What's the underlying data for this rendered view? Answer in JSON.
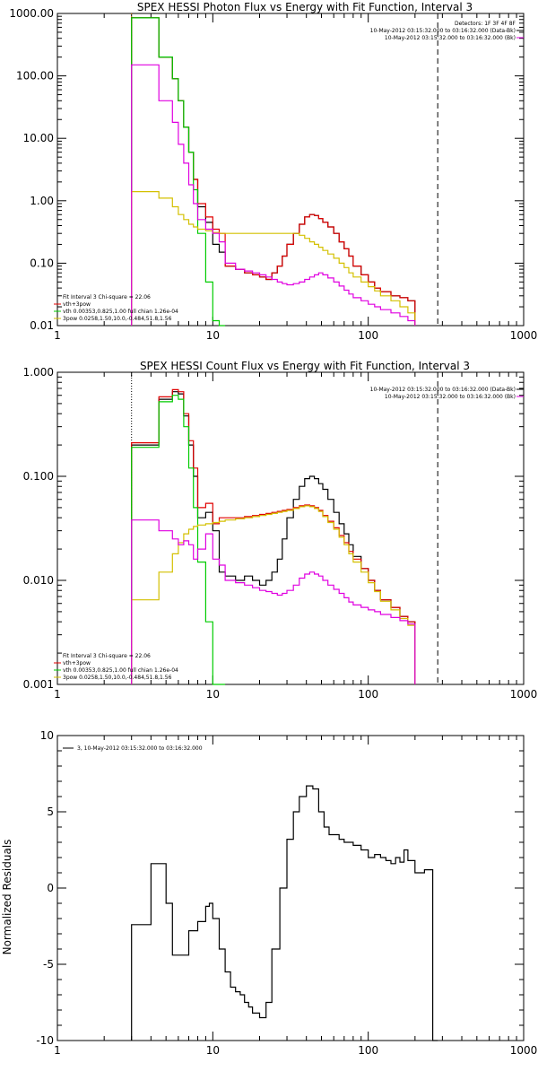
{
  "chart_data": [
    {
      "type": "line",
      "title": "SPEX HESSI Photon Flux vs Energy with Fit Function, Interval 3",
      "xlabel": "",
      "ylabel": "",
      "xscale": "log",
      "yscale": "log",
      "xlim": [
        1,
        1000
      ],
      "ylim": [
        0.01,
        1000
      ],
      "xticks": [
        1,
        10,
        100,
        1000
      ],
      "xtick_labels": [
        "1",
        "10",
        "100",
        "1000"
      ],
      "yticks": [
        0.01,
        0.1,
        1,
        10,
        100,
        1000
      ],
      "ytick_labels": [
        "0.01",
        "0.10",
        "1.00",
        "10.00",
        "100.00",
        "1000.00"
      ],
      "legend_top": [
        "Detectors: 1F 3F 4F 8F",
        "10-May-2012 03:15:32.000 to 03:16:32.000 (Data-Bk)",
        "10-May-2012 03:15:32.000 to 03:16:32.000 (Bk)"
      ],
      "legend_bottom": [
        "Fit Interval 3   Chi-square = 22.06",
        "vth+3pow",
        "vth 0.00353,0.825,1.00  full chian 1.26e-04",
        "3pow 0.0258,1.50,10.0,-0.484,51.8,1.56"
      ],
      "edges": [
        3,
        3.5,
        4,
        4.5,
        5,
        5.5,
        6,
        6.5,
        7,
        7.5,
        8,
        9,
        10,
        11,
        12,
        14,
        16,
        18,
        20,
        22,
        24,
        26,
        28,
        30,
        33,
        36,
        39,
        42,
        45,
        48,
        51,
        55,
        60,
        65,
        70,
        75,
        80,
        90,
        100,
        110,
        120,
        140,
        160,
        180,
        200,
        230,
        260,
        290
      ],
      "series": [
        {
          "name": "Data-Bk",
          "color": "#000000",
          "values": [
            850,
            850,
            850,
            200,
            200,
            90,
            40,
            15,
            6,
            2.2,
            0.8,
            0.45,
            0.2,
            0.15,
            0.09,
            0.08,
            0.07,
            0.065,
            0.06,
            0.055,
            0.07,
            0.09,
            0.13,
            0.2,
            0.3,
            0.42,
            0.55,
            0.6,
            0.58,
            0.52,
            0.45,
            0.38,
            0.3,
            0.22,
            0.17,
            0.13,
            0.09,
            0.065,
            0.05,
            0.04,
            0.035,
            0.03,
            0.028,
            0.025
          ]
        },
        {
          "name": "vth+3pow",
          "color": "#e00000",
          "values": [
            850,
            850,
            850,
            200,
            200,
            90,
            40,
            15,
            6,
            2.2,
            0.9,
            0.55,
            0.35,
            0.3,
            0.09,
            0.08,
            0.07,
            0.065,
            0.06,
            0.055,
            0.07,
            0.09,
            0.13,
            0.2,
            0.3,
            0.42,
            0.55,
            0.6,
            0.58,
            0.52,
            0.45,
            0.38,
            0.3,
            0.22,
            0.17,
            0.13,
            0.09,
            0.065,
            0.05,
            0.04,
            0.035,
            0.03,
            0.028,
            0.025
          ]
        },
        {
          "name": "vth",
          "color": "#00cc00",
          "values": [
            850,
            850,
            850,
            200,
            200,
            90,
            40,
            15,
            6,
            1.5,
            0.3,
            0.05,
            0.012,
            0.002
          ]
        },
        {
          "name": "3pow",
          "color": "#d4c000",
          "values": [
            1.4,
            1.4,
            1.4,
            1.1,
            1.1,
            0.8,
            0.6,
            0.5,
            0.42,
            0.38,
            0.35,
            0.33,
            0.31,
            0.3,
            0.3,
            0.3,
            0.3,
            0.3,
            0.3,
            0.3,
            0.3,
            0.3,
            0.3,
            0.3,
            0.3,
            0.28,
            0.25,
            0.22,
            0.2,
            0.18,
            0.16,
            0.14,
            0.12,
            0.1,
            0.085,
            0.07,
            0.06,
            0.05,
            0.042,
            0.036,
            0.03,
            0.025,
            0.02,
            0.016
          ]
        },
        {
          "name": "Bk",
          "color": "#e000e0",
          "values": [
            150,
            150,
            150,
            40,
            40,
            18,
            8,
            4,
            1.8,
            0.9,
            0.5,
            0.35,
            0.3,
            0.22,
            0.1,
            0.08,
            0.075,
            0.07,
            0.065,
            0.06,
            0.055,
            0.05,
            0.047,
            0.045,
            0.047,
            0.05,
            0.055,
            0.06,
            0.065,
            0.07,
            0.065,
            0.058,
            0.05,
            0.043,
            0.037,
            0.032,
            0.028,
            0.025,
            0.022,
            0.02,
            0.018,
            0.016,
            0.014,
            0.012
          ]
        }
      ],
      "markers": [
        {
          "x": 3,
          "style": "dotted",
          "color": "#e08000"
        },
        {
          "x": 280,
          "style": "dashed",
          "color": "#000000"
        }
      ]
    },
    {
      "type": "line",
      "title": "SPEX HESSI Count Flux vs Energy with Fit Function, Interval 3",
      "xlabel": "",
      "ylabel": "",
      "xscale": "log",
      "yscale": "log",
      "xlim": [
        1,
        1000
      ],
      "ylim": [
        0.001,
        1
      ],
      "xticks": [
        1,
        10,
        100,
        1000
      ],
      "xtick_labels": [
        "1",
        "10",
        "100",
        "1000"
      ],
      "yticks": [
        0.001,
        0.01,
        0.1,
        1
      ],
      "ytick_labels": [
        "0.001",
        "0.010",
        "0.100",
        "1.000"
      ],
      "legend_top": [
        "10-May-2012 03:15:32.000 to 03:16:32.000 (Data-Bk)",
        "10-May-2012 03:15:32.000 to 03:16:32.000 (Bk)"
      ],
      "legend_bottom": [
        "Fit Interval 3   Chi-square = 22.06",
        "vth+3pow",
        "vth 0.00353,0.825,1.00  full chian 1.26e-04",
        "3pow 0.0258,1.50,10.0,-0.484,51.8,1.56"
      ],
      "edges": [
        3,
        3.5,
        4,
        4.5,
        5,
        5.5,
        6,
        6.5,
        7,
        7.5,
        8,
        9,
        10,
        11,
        12,
        14,
        16,
        18,
        20,
        22,
        24,
        26,
        28,
        30,
        33,
        36,
        39,
        42,
        45,
        48,
        51,
        55,
        60,
        65,
        70,
        75,
        80,
        90,
        100,
        110,
        120,
        140,
        160,
        180,
        200,
        230,
        260,
        290
      ],
      "series": [
        {
          "name": "Data-Bk",
          "color": "#000000",
          "values": [
            0.2,
            0.2,
            0.2,
            0.55,
            0.55,
            0.65,
            0.62,
            0.38,
            0.2,
            0.1,
            0.04,
            0.045,
            0.03,
            0.012,
            0.011,
            0.01,
            0.011,
            0.01,
            0.009,
            0.01,
            0.012,
            0.016,
            0.025,
            0.04,
            0.06,
            0.08,
            0.095,
            0.1,
            0.095,
            0.085,
            0.075,
            0.06,
            0.045,
            0.035,
            0.028,
            0.022,
            0.017,
            0.013,
            0.01,
            0.008,
            0.0065,
            0.0055,
            0.0045,
            0.004
          ]
        },
        {
          "name": "vth+3pow",
          "color": "#e00000",
          "values": [
            0.21,
            0.21,
            0.21,
            0.58,
            0.58,
            0.68,
            0.65,
            0.4,
            0.22,
            0.12,
            0.05,
            0.055,
            0.035,
            0.04,
            0.04,
            0.04,
            0.041,
            0.042,
            0.043,
            0.044,
            0.045,
            0.046,
            0.047,
            0.048,
            0.05,
            0.052,
            0.053,
            0.052,
            0.05,
            0.047,
            0.042,
            0.037,
            0.032,
            0.027,
            0.023,
            0.019,
            0.016,
            0.013,
            0.01,
            0.008,
            0.0065,
            0.0055,
            0.0045,
            0.004
          ]
        },
        {
          "name": "vth",
          "color": "#00cc00",
          "values": [
            0.19,
            0.19,
            0.19,
            0.52,
            0.52,
            0.6,
            0.55,
            0.3,
            0.12,
            0.05,
            0.015,
            0.004,
            0.001,
            0.0004
          ]
        },
        {
          "name": "3pow",
          "color": "#d4c000",
          "values": [
            0.0065,
            0.0065,
            0.0065,
            0.012,
            0.012,
            0.018,
            0.023,
            0.028,
            0.031,
            0.033,
            0.034,
            0.035,
            0.036,
            0.037,
            0.038,
            0.039,
            0.04,
            0.041,
            0.042,
            0.043,
            0.044,
            0.045,
            0.046,
            0.047,
            0.049,
            0.051,
            0.052,
            0.051,
            0.049,
            0.046,
            0.041,
            0.036,
            0.031,
            0.026,
            0.022,
            0.018,
            0.015,
            0.012,
            0.0095,
            0.0078,
            0.0063,
            0.0052,
            0.0043,
            0.0037
          ]
        },
        {
          "name": "Bk",
          "color": "#e000e0",
          "values": [
            0.038,
            0.038,
            0.038,
            0.03,
            0.03,
            0.025,
            0.022,
            0.024,
            0.022,
            0.016,
            0.02,
            0.028,
            0.016,
            0.014,
            0.01,
            0.0095,
            0.009,
            0.0085,
            0.008,
            0.0078,
            0.0075,
            0.0072,
            0.0075,
            0.008,
            0.009,
            0.0105,
            0.0115,
            0.012,
            0.0115,
            0.011,
            0.01,
            0.009,
            0.0082,
            0.0075,
            0.0068,
            0.0062,
            0.0058,
            0.0055,
            0.0052,
            0.005,
            0.0047,
            0.0044,
            0.0041,
            0.0038
          ]
        }
      ],
      "markers": [
        {
          "x": 3,
          "style": "dotted",
          "color": "#000000"
        },
        {
          "x": 280,
          "style": "dashed",
          "color": "#000000"
        }
      ]
    },
    {
      "type": "line",
      "title": "",
      "xlabel": "",
      "ylabel": "Normalized Residuals",
      "xscale": "log",
      "yscale": "linear",
      "xlim": [
        1,
        1000
      ],
      "ylim": [
        -10,
        10
      ],
      "xticks": [
        1,
        10,
        100,
        1000
      ],
      "xtick_labels": [
        "1",
        "10",
        "100",
        "1000"
      ],
      "yticks": [
        -10,
        -5,
        0,
        5,
        10
      ],
      "ytick_labels": [
        "-10",
        "-5",
        "0",
        "5",
        "10"
      ],
      "legend_top": [
        "3, 10-May-2012 03:15:32.000 to 03:16:32.000"
      ],
      "legend_bottom": [],
      "edges": [
        3,
        4,
        4.5,
        5,
        5.5,
        6,
        7,
        8,
        9,
        9.5,
        10,
        11,
        12,
        13,
        14,
        15,
        16,
        17,
        18,
        20,
        22,
        24,
        27,
        30,
        33,
        36,
        40,
        44,
        48,
        52,
        56,
        60,
        65,
        70,
        80,
        90,
        100,
        110,
        120,
        130,
        140,
        150,
        160,
        170,
        180,
        200,
        230,
        260,
        280
      ],
      "series": [
        {
          "name": "",
          "color": "#000000",
          "values": [
            -2.4,
            1.6,
            1.6,
            -1.0,
            -4.4,
            -4.4,
            -2.8,
            -2.2,
            -1.2,
            -1.0,
            -2.0,
            -4.0,
            -5.5,
            -6.5,
            -6.8,
            -7.0,
            -7.5,
            -7.8,
            -8.2,
            -8.5,
            -7.5,
            -4.0,
            0.0,
            3.2,
            5.0,
            6.0,
            6.7,
            6.5,
            5.0,
            4.0,
            3.5,
            3.5,
            3.2,
            3.0,
            2.8,
            2.5,
            2.0,
            2.2,
            2.0,
            1.8,
            1.6,
            2.0,
            1.7,
            2.5,
            1.8,
            1.0,
            1.2,
            -10.0
          ]
        }
      ],
      "markers": []
    }
  ]
}
